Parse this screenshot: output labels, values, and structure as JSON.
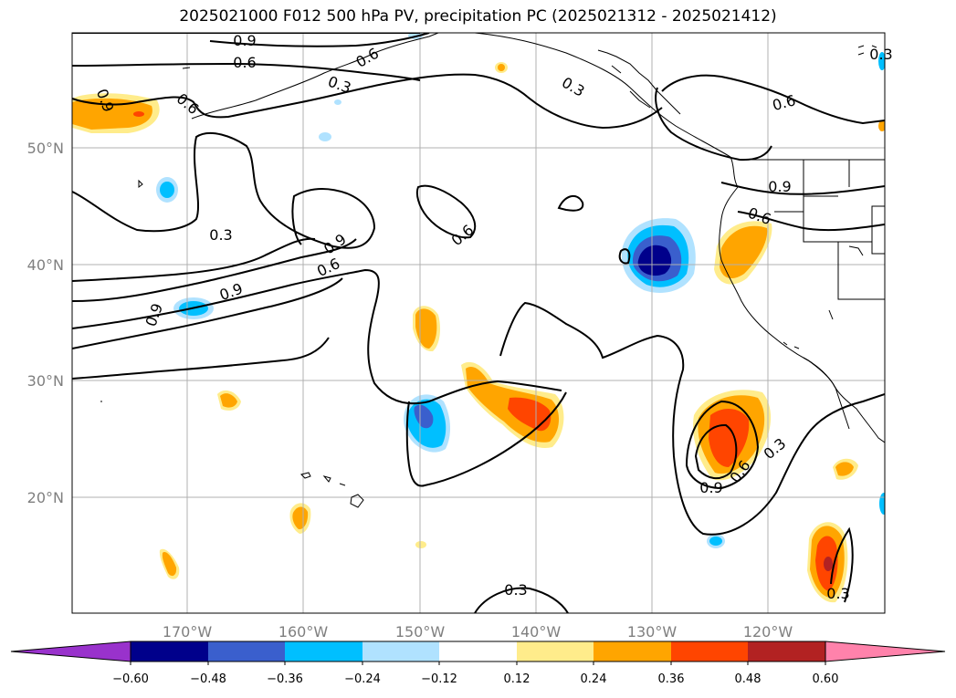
{
  "title": "2025021000 F012 500 hPa PV, precipitation PC (2025021312 - 2025021412)",
  "map": {
    "lon_labels": [
      "170°W",
      "160°W",
      "150°W",
      "140°W",
      "130°W",
      "120°W"
    ],
    "lat_labels": [
      "50°N",
      "40°N",
      "30°N",
      "20°N"
    ]
  },
  "contour_labels": [
    "0.9",
    "0.6",
    "0.6",
    "0.3",
    "0.3",
    "0.6",
    "0.9",
    "0.3",
    "0.9",
    "0.6",
    "0.6",
    "0.9",
    "0.9",
    "0.6",
    "0.9",
    "0.3",
    "0.6",
    "0.3",
    "0.3",
    "0.6",
    "0.9",
    "0.3"
  ],
  "colorbar": {
    "ticks": [
      "−0.60",
      "−0.48",
      "−0.36",
      "−0.24",
      "−0.12",
      "0.12",
      "0.24",
      "0.36",
      "0.48",
      "0.60"
    ],
    "colors": [
      "#9932cc",
      "#00008b",
      "#3a5fcd",
      "#00bfff",
      "#b0e2ff",
      "#ffffff",
      "#ffec8b",
      "#ffa500",
      "#ff4500",
      "#b22222",
      "#ff82ab"
    ]
  },
  "legend_colors": {
    "neg_extreme": "#00008b",
    "neg_strong": "#3a5fcd",
    "neg_mid": "#00bfff",
    "neg_weak": "#b0e2ff",
    "pos_weak": "#ffec8b",
    "pos_mid": "#ffa500",
    "pos_strong": "#ff4500",
    "pos_extreme": "#b22222"
  }
}
